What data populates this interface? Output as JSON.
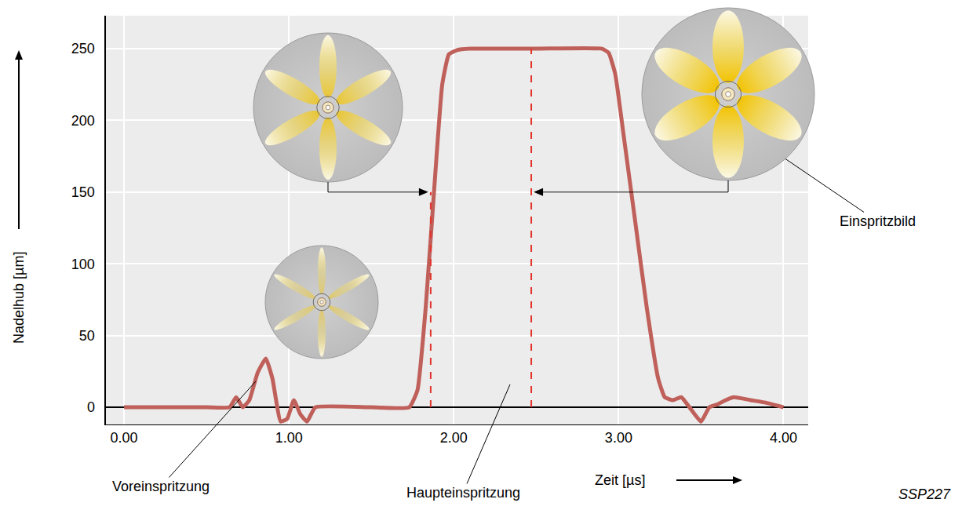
{
  "chart_data": {
    "type": "line",
    "color": "#c0605b",
    "xlabel": "Zeit [µs]",
    "ylabel": "Nadelhub [µm]",
    "x": [
      0,
      0.5,
      0.64,
      0.68,
      0.72,
      0.76,
      0.81,
      0.86,
      0.9,
      0.95,
      0.99,
      1.03,
      1.07,
      1.11,
      1.16,
      1.5,
      1.73,
      1.78,
      1.83,
      1.88,
      1.93,
      1.97,
      2.02,
      2.1,
      2.5,
      2.9,
      2.94,
      2.98,
      3.03,
      3.1,
      3.17,
      3.24,
      3.28,
      3.33,
      3.38,
      3.43,
      3.5,
      3.55,
      3.6,
      3.65,
      3.7,
      3.8,
      3.9,
      4.0
    ],
    "values": [
      0,
      0,
      0,
      7,
      0,
      5,
      24,
      34,
      20,
      -10,
      -8,
      5,
      -5,
      -10,
      0,
      0,
      0,
      12,
      70,
      150,
      225,
      246,
      249,
      250,
      250,
      250,
      247,
      232,
      190,
      130,
      70,
      20,
      7,
      5,
      7,
      0,
      -10,
      0,
      2,
      5,
      7,
      5,
      3,
      0
    ],
    "xlim": [
      -0.11,
      4.15
    ],
    "ylim": [
      -12,
      273
    ],
    "xticks": [
      {
        "value": 0,
        "label": "0.00"
      },
      {
        "value": 1,
        "label": "1.00"
      },
      {
        "value": 2,
        "label": "2.00"
      },
      {
        "value": 3,
        "label": "3.00"
      },
      {
        "value": 4,
        "label": "4.00"
      }
    ],
    "yticks": [
      0,
      50,
      100,
      150,
      200,
      250
    ],
    "grid": true,
    "reference_lines": [
      {
        "x": 1.86,
        "y": 150
      },
      {
        "x": 2.47,
        "y": 250
      }
    ],
    "annotations": [
      "Voreinspritzung",
      "Haupteinspritzung",
      "Einspritzbild"
    ],
    "source": "SSP227"
  }
}
